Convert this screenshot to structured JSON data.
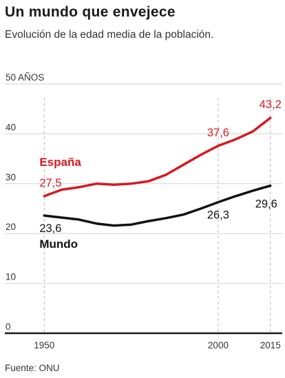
{
  "chart_data": {
    "type": "line",
    "title": "Un mundo que envejece",
    "subtitle": "Evolución de la edad media de la población.",
    "source": "Fuente: ONU",
    "ylim": [
      0,
      50
    ],
    "y_ticks": [
      {
        "value": 0,
        "label": "0"
      },
      {
        "value": 10,
        "label": "10"
      },
      {
        "value": 20,
        "label": "20"
      },
      {
        "value": 30,
        "label": "30"
      },
      {
        "value": 40,
        "label": "40"
      },
      {
        "value": 50,
        "label": "50 AÑOS"
      }
    ],
    "xlim": [
      1944,
      2020
    ],
    "x_ticks": [
      {
        "value": 1950,
        "label": "1950"
      },
      {
        "value": 2000,
        "label": "2000"
      },
      {
        "value": 2015,
        "label": "2015"
      }
    ],
    "grid": true,
    "series": [
      {
        "name": "España",
        "color": "#d7191f",
        "points": [
          [
            1950,
            27.5
          ],
          [
            1955,
            28.8
          ],
          [
            1960,
            29.3
          ],
          [
            1965,
            30.0
          ],
          [
            1970,
            29.8
          ],
          [
            1975,
            30.0
          ],
          [
            1980,
            30.5
          ],
          [
            1985,
            31.8
          ],
          [
            1990,
            33.8
          ],
          [
            1995,
            35.8
          ],
          [
            2000,
            37.6
          ],
          [
            2005,
            38.9
          ],
          [
            2010,
            40.5
          ],
          [
            2015,
            43.2
          ]
        ],
        "labels": [
          {
            "x": 1950,
            "text": "27,5"
          },
          {
            "x": 2000,
            "text": "37,6"
          },
          {
            "x": 2015,
            "text": "43,2"
          }
        ]
      },
      {
        "name": "Mundo",
        "color": "#111111",
        "points": [
          [
            1950,
            23.6
          ],
          [
            1955,
            23.2
          ],
          [
            1960,
            22.8
          ],
          [
            1965,
            22.0
          ],
          [
            1970,
            21.6
          ],
          [
            1975,
            21.8
          ],
          [
            1980,
            22.5
          ],
          [
            1985,
            23.1
          ],
          [
            1990,
            23.8
          ],
          [
            1995,
            25.0
          ],
          [
            2000,
            26.3
          ],
          [
            2005,
            27.5
          ],
          [
            2010,
            28.6
          ],
          [
            2015,
            29.6
          ]
        ],
        "labels": [
          {
            "x": 1950,
            "text": "23,6"
          },
          {
            "x": 2000,
            "text": "26,3"
          },
          {
            "x": 2015,
            "text": "29,6"
          }
        ]
      }
    ]
  }
}
